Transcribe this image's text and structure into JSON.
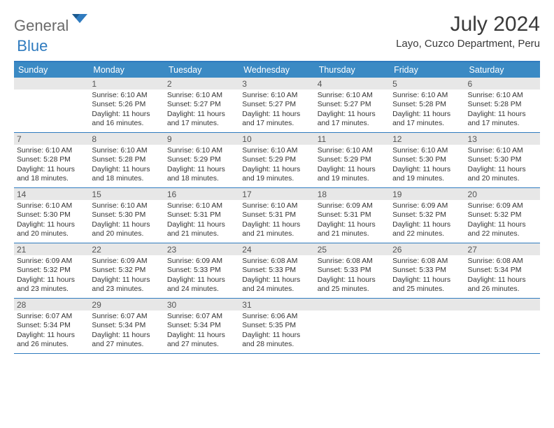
{
  "brand": {
    "gray": "General",
    "blue": "Blue"
  },
  "title": "July 2024",
  "location": "Layo, Cuzco Department, Peru",
  "colors": {
    "accent": "#2f7bbf",
    "header_bar": "#3b8ac4",
    "daynum_bg": "#e7e7e7",
    "text": "#333333",
    "logo_gray": "#6a6a6a"
  },
  "dow": [
    "Sunday",
    "Monday",
    "Tuesday",
    "Wednesday",
    "Thursday",
    "Friday",
    "Saturday"
  ],
  "weeks": [
    [
      {
        "n": "",
        "rise": "",
        "set": "",
        "day": ""
      },
      {
        "n": "1",
        "rise": "Sunrise: 6:10 AM",
        "set": "Sunset: 5:26 PM",
        "day": "Daylight: 11 hours and 16 minutes."
      },
      {
        "n": "2",
        "rise": "Sunrise: 6:10 AM",
        "set": "Sunset: 5:27 PM",
        "day": "Daylight: 11 hours and 17 minutes."
      },
      {
        "n": "3",
        "rise": "Sunrise: 6:10 AM",
        "set": "Sunset: 5:27 PM",
        "day": "Daylight: 11 hours and 17 minutes."
      },
      {
        "n": "4",
        "rise": "Sunrise: 6:10 AM",
        "set": "Sunset: 5:27 PM",
        "day": "Daylight: 11 hours and 17 minutes."
      },
      {
        "n": "5",
        "rise": "Sunrise: 6:10 AM",
        "set": "Sunset: 5:28 PM",
        "day": "Daylight: 11 hours and 17 minutes."
      },
      {
        "n": "6",
        "rise": "Sunrise: 6:10 AM",
        "set": "Sunset: 5:28 PM",
        "day": "Daylight: 11 hours and 17 minutes."
      }
    ],
    [
      {
        "n": "7",
        "rise": "Sunrise: 6:10 AM",
        "set": "Sunset: 5:28 PM",
        "day": "Daylight: 11 hours and 18 minutes."
      },
      {
        "n": "8",
        "rise": "Sunrise: 6:10 AM",
        "set": "Sunset: 5:28 PM",
        "day": "Daylight: 11 hours and 18 minutes."
      },
      {
        "n": "9",
        "rise": "Sunrise: 6:10 AM",
        "set": "Sunset: 5:29 PM",
        "day": "Daylight: 11 hours and 18 minutes."
      },
      {
        "n": "10",
        "rise": "Sunrise: 6:10 AM",
        "set": "Sunset: 5:29 PM",
        "day": "Daylight: 11 hours and 19 minutes."
      },
      {
        "n": "11",
        "rise": "Sunrise: 6:10 AM",
        "set": "Sunset: 5:29 PM",
        "day": "Daylight: 11 hours and 19 minutes."
      },
      {
        "n": "12",
        "rise": "Sunrise: 6:10 AM",
        "set": "Sunset: 5:30 PM",
        "day": "Daylight: 11 hours and 19 minutes."
      },
      {
        "n": "13",
        "rise": "Sunrise: 6:10 AM",
        "set": "Sunset: 5:30 PM",
        "day": "Daylight: 11 hours and 20 minutes."
      }
    ],
    [
      {
        "n": "14",
        "rise": "Sunrise: 6:10 AM",
        "set": "Sunset: 5:30 PM",
        "day": "Daylight: 11 hours and 20 minutes."
      },
      {
        "n": "15",
        "rise": "Sunrise: 6:10 AM",
        "set": "Sunset: 5:30 PM",
        "day": "Daylight: 11 hours and 20 minutes."
      },
      {
        "n": "16",
        "rise": "Sunrise: 6:10 AM",
        "set": "Sunset: 5:31 PM",
        "day": "Daylight: 11 hours and 21 minutes."
      },
      {
        "n": "17",
        "rise": "Sunrise: 6:10 AM",
        "set": "Sunset: 5:31 PM",
        "day": "Daylight: 11 hours and 21 minutes."
      },
      {
        "n": "18",
        "rise": "Sunrise: 6:09 AM",
        "set": "Sunset: 5:31 PM",
        "day": "Daylight: 11 hours and 21 minutes."
      },
      {
        "n": "19",
        "rise": "Sunrise: 6:09 AM",
        "set": "Sunset: 5:32 PM",
        "day": "Daylight: 11 hours and 22 minutes."
      },
      {
        "n": "20",
        "rise": "Sunrise: 6:09 AM",
        "set": "Sunset: 5:32 PM",
        "day": "Daylight: 11 hours and 22 minutes."
      }
    ],
    [
      {
        "n": "21",
        "rise": "Sunrise: 6:09 AM",
        "set": "Sunset: 5:32 PM",
        "day": "Daylight: 11 hours and 23 minutes."
      },
      {
        "n": "22",
        "rise": "Sunrise: 6:09 AM",
        "set": "Sunset: 5:32 PM",
        "day": "Daylight: 11 hours and 23 minutes."
      },
      {
        "n": "23",
        "rise": "Sunrise: 6:09 AM",
        "set": "Sunset: 5:33 PM",
        "day": "Daylight: 11 hours and 24 minutes."
      },
      {
        "n": "24",
        "rise": "Sunrise: 6:08 AM",
        "set": "Sunset: 5:33 PM",
        "day": "Daylight: 11 hours and 24 minutes."
      },
      {
        "n": "25",
        "rise": "Sunrise: 6:08 AM",
        "set": "Sunset: 5:33 PM",
        "day": "Daylight: 11 hours and 25 minutes."
      },
      {
        "n": "26",
        "rise": "Sunrise: 6:08 AM",
        "set": "Sunset: 5:33 PM",
        "day": "Daylight: 11 hours and 25 minutes."
      },
      {
        "n": "27",
        "rise": "Sunrise: 6:08 AM",
        "set": "Sunset: 5:34 PM",
        "day": "Daylight: 11 hours and 26 minutes."
      }
    ],
    [
      {
        "n": "28",
        "rise": "Sunrise: 6:07 AM",
        "set": "Sunset: 5:34 PM",
        "day": "Daylight: 11 hours and 26 minutes."
      },
      {
        "n": "29",
        "rise": "Sunrise: 6:07 AM",
        "set": "Sunset: 5:34 PM",
        "day": "Daylight: 11 hours and 27 minutes."
      },
      {
        "n": "30",
        "rise": "Sunrise: 6:07 AM",
        "set": "Sunset: 5:34 PM",
        "day": "Daylight: 11 hours and 27 minutes."
      },
      {
        "n": "31",
        "rise": "Sunrise: 6:06 AM",
        "set": "Sunset: 5:35 PM",
        "day": "Daylight: 11 hours and 28 minutes."
      },
      {
        "n": "",
        "rise": "",
        "set": "",
        "day": ""
      },
      {
        "n": "",
        "rise": "",
        "set": "",
        "day": ""
      },
      {
        "n": "",
        "rise": "",
        "set": "",
        "day": ""
      }
    ]
  ]
}
